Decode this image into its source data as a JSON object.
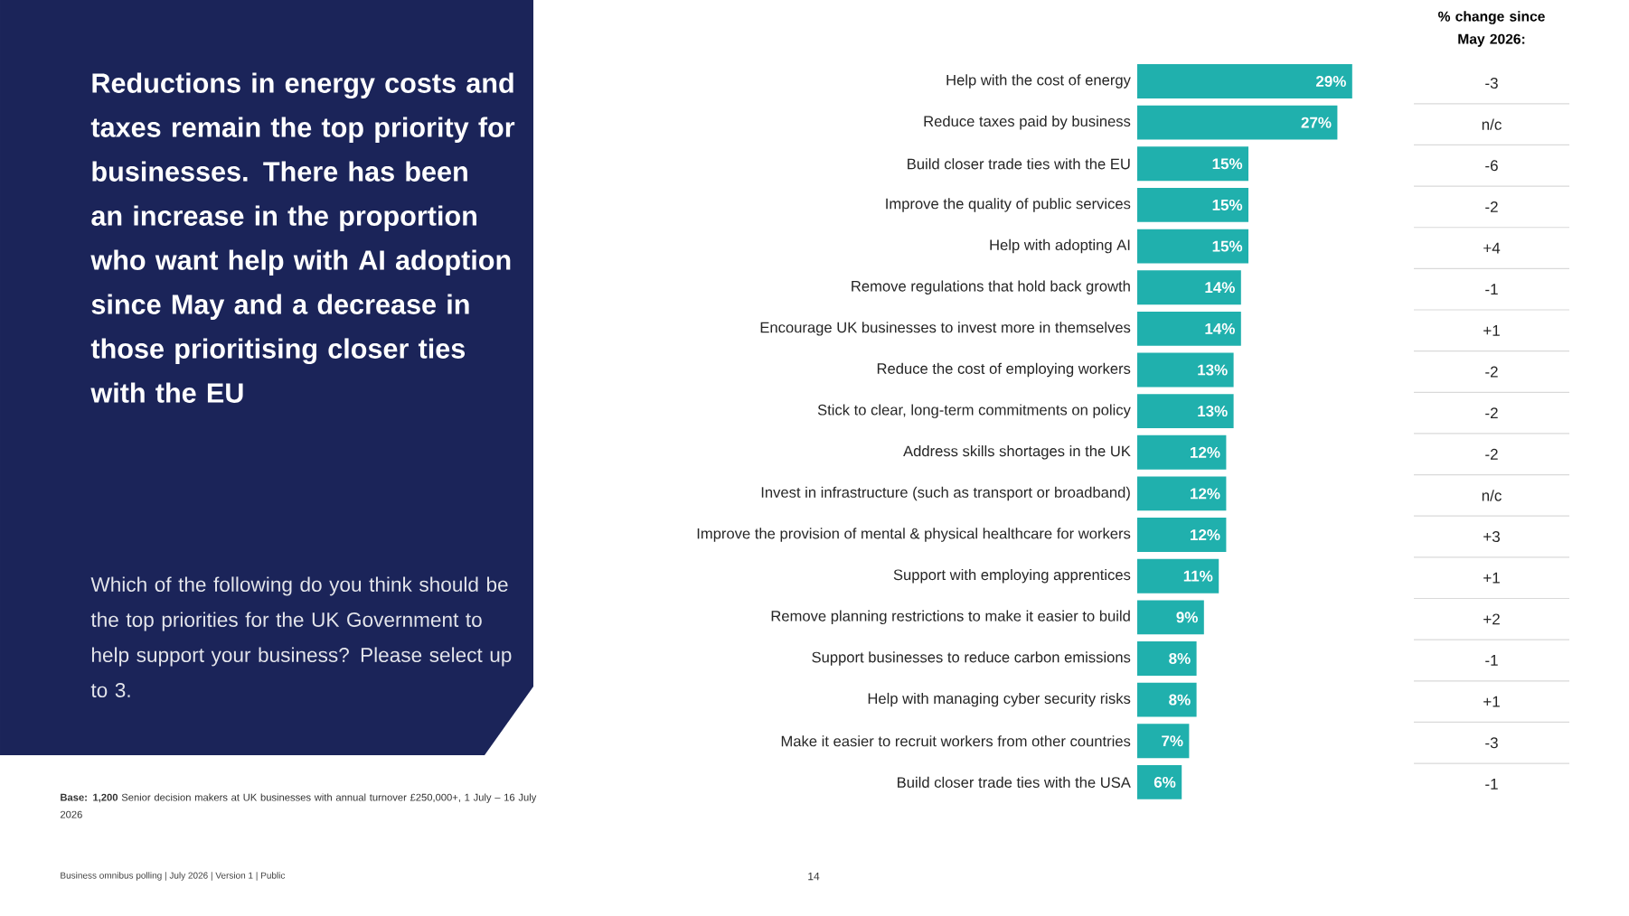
{
  "chart_data": {
    "type": "bar",
    "orientation": "horizontal",
    "title": "Reductions in energy costs and taxes remain the top priority for businesses. There has been an increase in the proportion who want help with AI adoption since May and a decrease in those prioritising closer ties with the EU",
    "subtitle": "Which of the following do you think should be the top priorities for the UK Government to help support your business? Please select up to 3.",
    "categories": [
      "Help with the cost of energy",
      "Reduce taxes paid by business",
      "Build closer trade ties with the EU",
      "Improve the quality of public services",
      "Help with adopting AI",
      "Remove regulations that hold back growth",
      "Encourage UK businesses to invest more in themselves",
      "Reduce the cost of employing workers",
      "Stick to clear, long-term commitments on policy",
      "Address skills shortages in the UK",
      "Invest in infrastructure (such as transport or broadband)",
      "Improve the provision of mental & physical healthcare for workers",
      "Support with employing apprentices",
      "Remove planning restrictions to make it easier to build",
      "Support businesses to reduce carbon emissions",
      "Help with managing cyber security risks",
      "Make it easier to recruit workers from other countries",
      "Build closer trade ties with the USA"
    ],
    "values": [
      29,
      27,
      15,
      15,
      15,
      14,
      14,
      13,
      13,
      12,
      12,
      12,
      11,
      9,
      8,
      8,
      7,
      6
    ],
    "value_labels": [
      "29%",
      "27%",
      "15%",
      "15%",
      "15%",
      "14%",
      "14%",
      "13%",
      "13%",
      "12%",
      "12%",
      "12%",
      "11%",
      "9%",
      "8%",
      "8%",
      "7%",
      "6%"
    ],
    "color": "#20b0ad",
    "annotations": [
      "% change since May 2026:",
      "-3",
      "n/c",
      "-6",
      "-2",
      "+4",
      "-1",
      "+1",
      "-2",
      "-2",
      "-2",
      "n/c",
      "+3",
      "+1",
      "+2",
      "-1",
      "+1",
      "-3",
      "-1",
      "**Base: 1,200** Senior decision makers at UK businesses with annual turnover £250,000+, 1 July – 16 July 2026",
      "Business omnibus polling | July 2026 | Version 1 | Public",
      "14"
    ]
  }
}
